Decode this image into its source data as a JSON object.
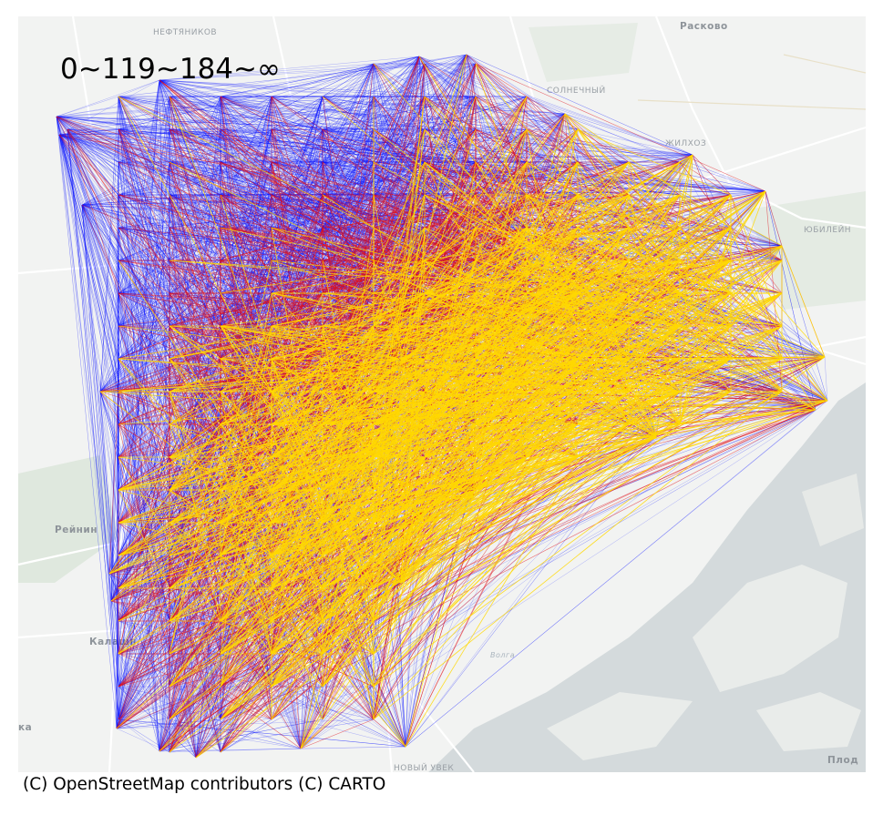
{
  "map": {
    "legend_title": "0~119~184~∞",
    "attribution": "(C) OpenStreetMap contributors (C) CARTO",
    "basemap_style": "CARTO Positron (light)",
    "place_labels": {
      "neftyanikov": "НЕФТЯНИКОВ",
      "raskovo": "Расково",
      "solnechny": "СОЛНЕЧНЫЙ",
      "zhilkhoz": "ЖИЛХОЗ",
      "yubileyny": "ЮБИЛЕЙН",
      "reynino": "Рейнин",
      "kalashnikovo": "Калашн",
      "volga": "Волга",
      "novy_uvek": "НОВЫЙ УВЕК",
      "ka": "ка",
      "plod": "Плод"
    },
    "flow_classes": [
      {
        "range": "0~119",
        "color": "#0a14ff"
      },
      {
        "range": "119~184",
        "color": "#e0101a"
      },
      {
        "range": "184~∞",
        "color": "#ffd800"
      }
    ],
    "colors": {
      "land": "#f2f3f2",
      "water": "#d4dadc",
      "green": "#dfe8de",
      "roads": "#ffffff"
    }
  }
}
